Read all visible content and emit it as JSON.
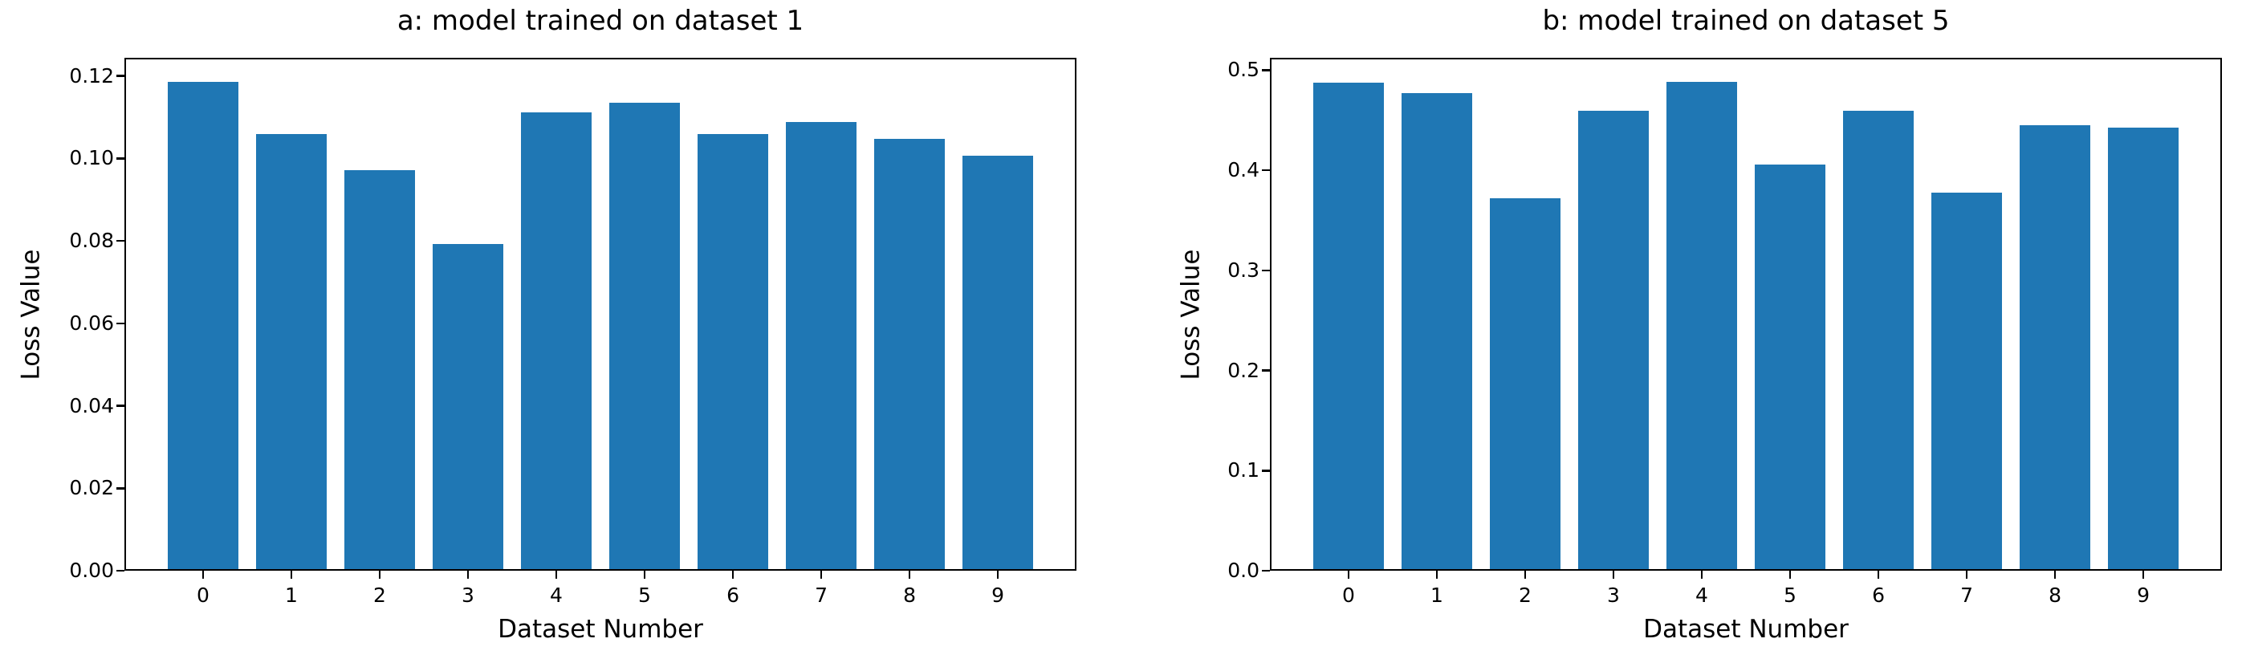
{
  "figure": {
    "background_color": "#ffffff",
    "bar_color": "#1f77b4",
    "axis_color": "#000000",
    "text_color": "#000000"
  },
  "chart_data": [
    {
      "type": "bar",
      "title": "a: model trained on dataset 1",
      "xlabel": "Dataset Number",
      "ylabel": "Loss Value",
      "categories": [
        "0",
        "1",
        "2",
        "3",
        "4",
        "5",
        "6",
        "7",
        "8",
        "9"
      ],
      "values": [
        0.1185,
        0.106,
        0.0972,
        0.0793,
        0.1112,
        0.1135,
        0.106,
        0.1088,
        0.1048,
        0.1007
      ],
      "bar_width": 0.8,
      "xlim": [
        -0.89,
        9.89
      ],
      "ylim": [
        0,
        0.1244
      ],
      "yticks": {
        "values": [
          0,
          0.02,
          0.04,
          0.06,
          0.08,
          0.1,
          0.12
        ],
        "labels": [
          "0.00",
          "0.02",
          "0.04",
          "0.06",
          "0.08",
          "0.10",
          "0.12"
        ]
      },
      "grid": false,
      "legend": "none"
    },
    {
      "type": "bar",
      "title": "b: model trained on dataset 5",
      "xlabel": "Dataset Number",
      "ylabel": "Loss Value",
      "categories": [
        "0",
        "1",
        "2",
        "3",
        "4",
        "5",
        "6",
        "7",
        "8",
        "9"
      ],
      "values": [
        0.4875,
        0.4775,
        0.372,
        0.4595,
        0.488,
        0.4058,
        0.4595,
        0.3775,
        0.4448,
        0.4428
      ],
      "bar_width": 0.8,
      "xlim": [
        -0.89,
        9.89
      ],
      "ylim": [
        0,
        0.5124
      ],
      "yticks": {
        "values": [
          0,
          0.1,
          0.2,
          0.3,
          0.4,
          0.5
        ],
        "labels": [
          "0.0",
          "0.1",
          "0.2",
          "0.3",
          "0.4",
          "0.5"
        ]
      },
      "grid": false,
      "legend": "none"
    }
  ]
}
